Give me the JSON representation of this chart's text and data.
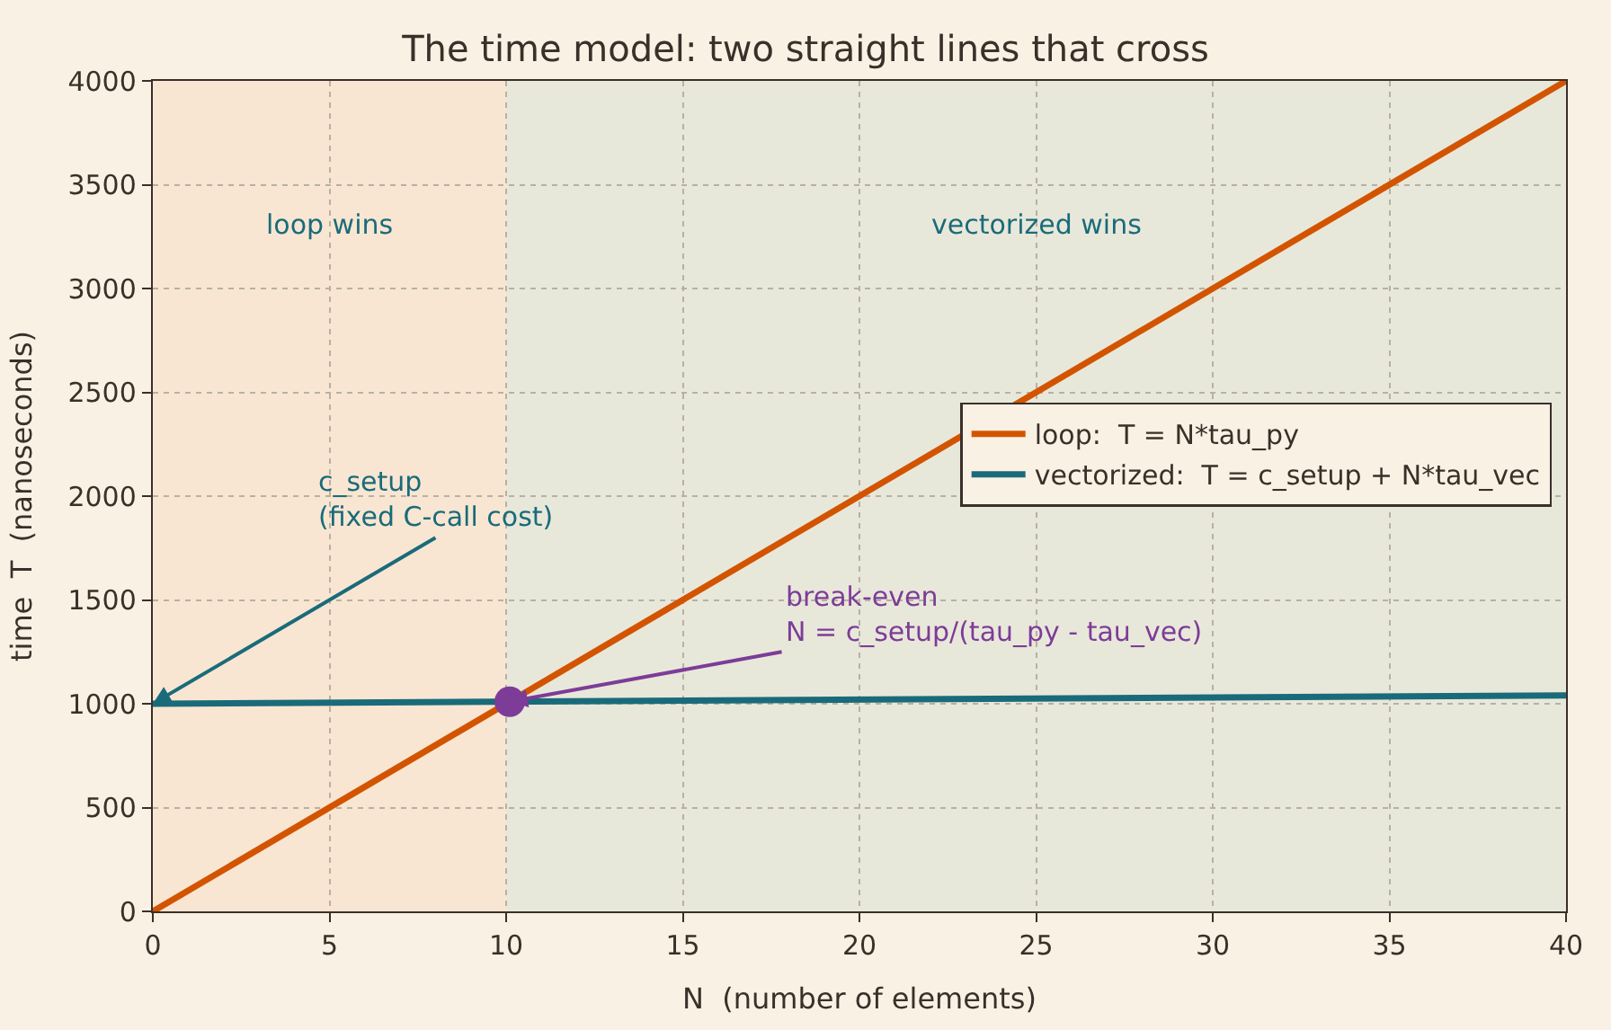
{
  "chart_data": {
    "type": "line",
    "title": "The time model: two straight lines that cross",
    "xlabel": "N  (number of elements)",
    "ylabel": "time  T  (nanoseconds)",
    "series": [
      {
        "name": "loop:  T = N*tau_py",
        "color": "#d35400",
        "x": [
          0,
          40
        ],
        "values": [
          0,
          4000
        ]
      },
      {
        "name": "vectorized:  T = c_setup + N*tau_vec",
        "color": "#1a6b7a",
        "x": [
          0,
          40
        ],
        "values": [
          1000,
          1040
        ]
      },
      {
        "type": "scatter",
        "color": "#7d3c98",
        "x": [
          10.1
        ],
        "values": [
          1010
        ],
        "marker": "circle"
      }
    ],
    "bands": [
      {
        "axis": "x",
        "from": 0,
        "to": 10,
        "label": "loop wins",
        "color": "#f8e6d2"
      },
      {
        "axis": "x",
        "from": 10,
        "to": 40,
        "label": "vectorized wins",
        "color": "#e8e8da"
      }
    ],
    "annotations": [
      {
        "text": "c_setup\n(fixed C-call cost)",
        "x": 0,
        "y": 1000
      },
      {
        "text": "break-even\nN = c_setup/(tau_py - tau_vec)",
        "x": 10.1,
        "y": 1010
      }
    ],
    "xlim": [
      0,
      40
    ],
    "ylim": [
      0,
      4000
    ],
    "xticks": [
      0,
      5,
      10,
      15,
      20,
      25,
      30,
      35,
      40
    ],
    "yticks": [
      0,
      500,
      1000,
      1500,
      2000,
      2500,
      3000,
      3500,
      4000
    ],
    "grid": true,
    "legend": "right"
  }
}
